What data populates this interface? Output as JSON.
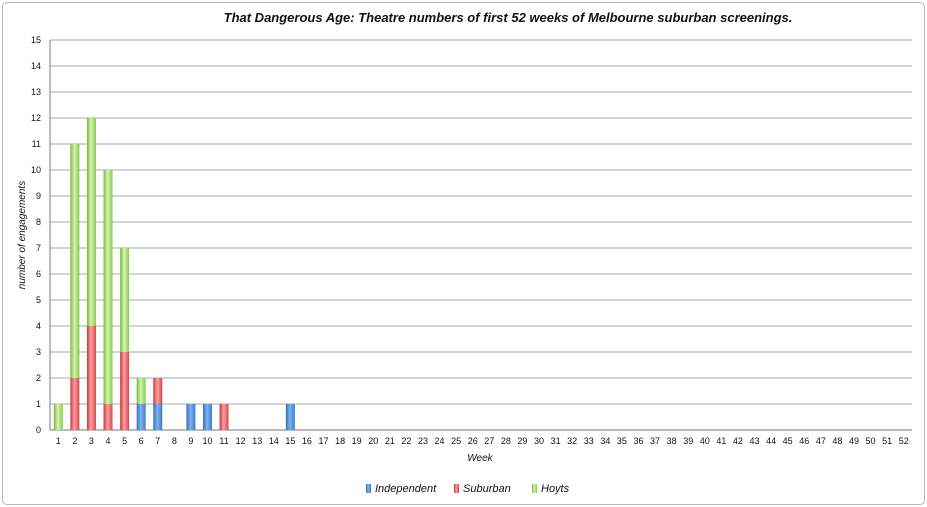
{
  "chart_data": {
    "type": "bar",
    "stacked": true,
    "title": "That Dangerous Age: Theatre numbers of first 52 weeks of Melbourne suburban screenings.",
    "xlabel": "Week",
    "ylabel": "number of engagements",
    "ylim": [
      0,
      15
    ],
    "yticks": [
      "0",
      "1",
      "2",
      "3",
      "4",
      "5",
      "6",
      "7",
      "8",
      "9",
      "10",
      "11",
      "12",
      "13",
      "14",
      "15"
    ],
    "grid": true,
    "legend_position": "bottom",
    "categories": [
      "1",
      "2",
      "3",
      "4",
      "5",
      "6",
      "7",
      "8",
      "9",
      "10",
      "11",
      "12",
      "13",
      "14",
      "15",
      "16",
      "17",
      "18",
      "19",
      "20",
      "21",
      "22",
      "23",
      "24",
      "25",
      "26",
      "27",
      "28",
      "29",
      "30",
      "31",
      "32",
      "33",
      "34",
      "35",
      "36",
      "37",
      "38",
      "39",
      "40",
      "41",
      "42",
      "43",
      "44",
      "45",
      "46",
      "47",
      "48",
      "49",
      "50",
      "51",
      "52"
    ],
    "series": [
      {
        "name": "Independent",
        "color": "#4f8fd8",
        "values": [
          0,
          0,
          0,
          0,
          0,
          1,
          1,
          0,
          1,
          1,
          0,
          0,
          0,
          0,
          1,
          0,
          0,
          0,
          0,
          0,
          0,
          0,
          0,
          0,
          0,
          0,
          0,
          0,
          0,
          0,
          0,
          0,
          0,
          0,
          0,
          0,
          0,
          0,
          0,
          0,
          0,
          0,
          0,
          0,
          0,
          0,
          0,
          0,
          0,
          0,
          0,
          0
        ]
      },
      {
        "name": "Suburban",
        "color": "#e0474c",
        "values": [
          0,
          2,
          4,
          1,
          3,
          0,
          1,
          0,
          0,
          0,
          1,
          0,
          0,
          0,
          0,
          0,
          0,
          0,
          0,
          0,
          0,
          0,
          0,
          0,
          0,
          0,
          0,
          0,
          0,
          0,
          0,
          0,
          0,
          0,
          0,
          0,
          0,
          0,
          0,
          0,
          0,
          0,
          0,
          0,
          0,
          0,
          0,
          0,
          0,
          0,
          0,
          0
        ]
      },
      {
        "name": "Hoyts",
        "color": "#7cc23a",
        "values": [
          1,
          9,
          8,
          9,
          4,
          1,
          0,
          0,
          0,
          0,
          0,
          0,
          0,
          0,
          0,
          0,
          0,
          0,
          0,
          0,
          0,
          0,
          0,
          0,
          0,
          0,
          0,
          0,
          0,
          0,
          0,
          0,
          0,
          0,
          0,
          0,
          0,
          0,
          0,
          0,
          0,
          0,
          0,
          0,
          0,
          0,
          0,
          0,
          0,
          0,
          0,
          0
        ]
      }
    ]
  }
}
